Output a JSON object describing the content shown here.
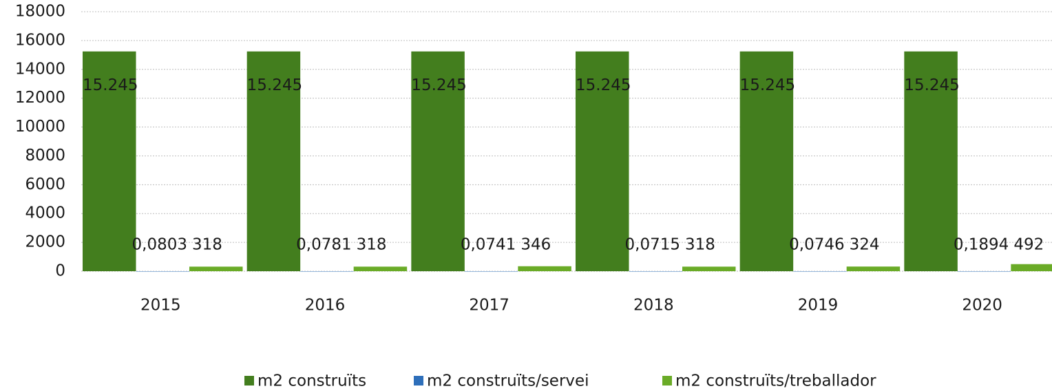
{
  "chart_data": {
    "type": "bar",
    "categories": [
      "2015",
      "2016",
      "2017",
      "2018",
      "2019",
      "2020"
    ],
    "series": [
      {
        "name": "m2 construïts",
        "color": "#437e1e",
        "values": [
          15245,
          15245,
          15245,
          15245,
          15245,
          15245
        ],
        "value_labels": [
          "15.245",
          "15.245",
          "15.245",
          "15.245",
          "15.245",
          "15.245"
        ]
      },
      {
        "name": "m2 construïts/servei",
        "color": "#2e6fba",
        "values": [
          0.0803,
          0.0781,
          0.0741,
          0.0715,
          0.0746,
          0.1894
        ],
        "value_labels": [
          "0,0803",
          "0,0781",
          "0,0741",
          "0,0715",
          "0,0746",
          "0,1894"
        ]
      },
      {
        "name": "m2 construïts/treballador",
        "color": "#6aab27",
        "values": [
          318,
          318,
          346,
          318,
          324,
          492
        ]
      }
    ],
    "ylim": [
      0,
      18000
    ],
    "yticks": [
      0,
      2000,
      4000,
      6000,
      8000,
      10000,
      12000,
      14000,
      16000,
      18000
    ],
    "grid": true
  }
}
